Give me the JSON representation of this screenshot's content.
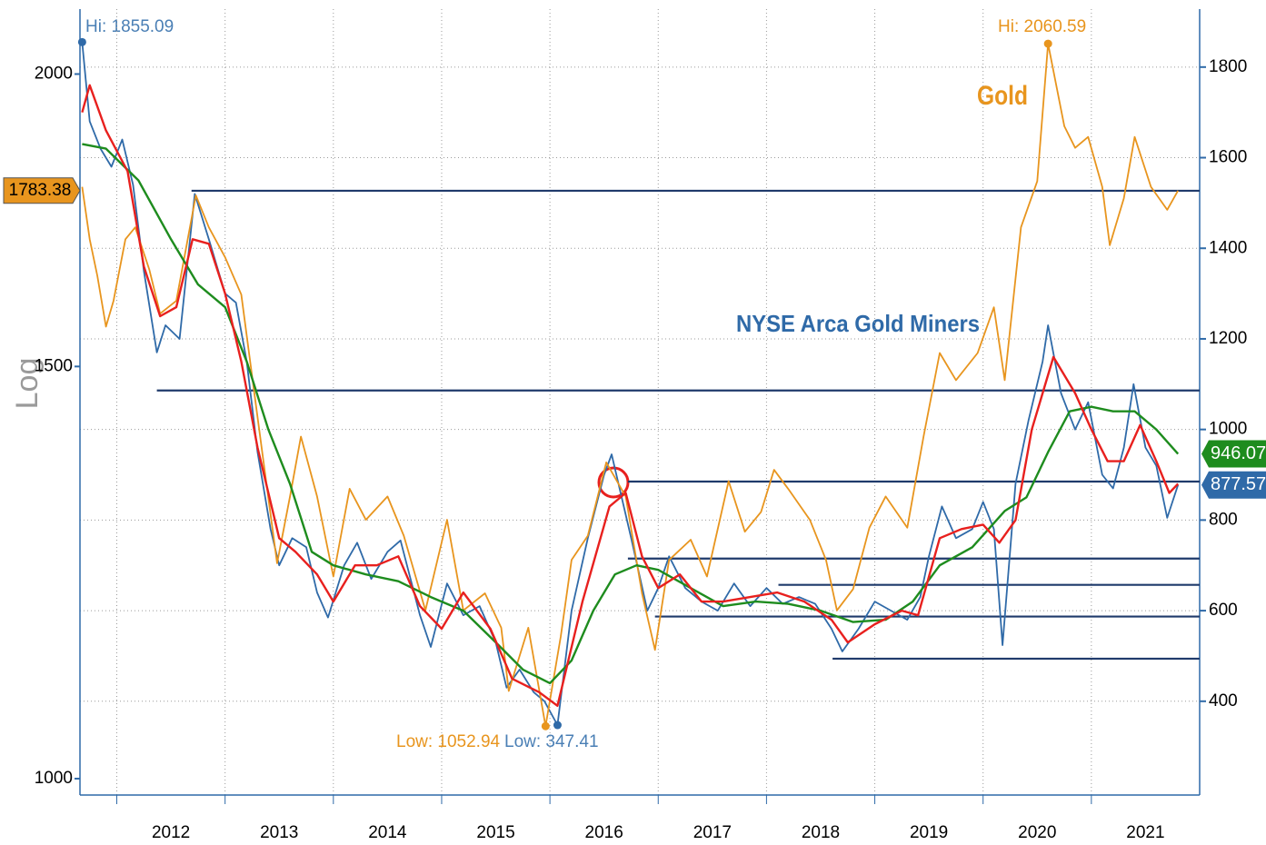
{
  "chart_data": {
    "type": "line",
    "y_axis_label": "Log",
    "log_y": true,
    "grid": true,
    "xlim": [
      2011.66,
      2022.0
    ],
    "xticks": [
      2012,
      2013,
      2014,
      2015,
      2016,
      2017,
      2018,
      2019,
      2020,
      2021
    ],
    "ylim": [
      984,
      2132
    ],
    "yticks": [
      1000,
      1500,
      2000
    ],
    "y2lim": [
      193,
      1928
    ],
    "y2ticks": [
      400,
      600,
      800,
      1000,
      1200,
      1400,
      1600,
      1800
    ],
    "series": [
      {
        "name": "Gold",
        "color": "#e8951e",
        "axis": "y",
        "x": [
          2011.68,
          2011.75,
          2011.82,
          2011.9,
          2011.97,
          2012.08,
          2012.17,
          2012.3,
          2012.4,
          2012.55,
          2012.73,
          2012.85,
          2013.0,
          2013.15,
          2013.28,
          2013.48,
          2013.6,
          2013.7,
          2013.85,
          2014.0,
          2014.15,
          2014.3,
          2014.5,
          2014.65,
          2014.85,
          2015.05,
          2015.2,
          2015.4,
          2015.55,
          2015.62,
          2015.8,
          2015.96,
          2016.1,
          2016.2,
          2016.35,
          2016.52,
          2016.7,
          2016.85,
          2016.97,
          2017.1,
          2017.3,
          2017.45,
          2017.65,
          2017.8,
          2017.95,
          2018.07,
          2018.2,
          2018.4,
          2018.55,
          2018.65,
          2018.8,
          2018.95,
          2019.1,
          2019.3,
          2019.45,
          2019.6,
          2019.75,
          2019.95,
          2020.1,
          2020.2,
          2020.35,
          2020.5,
          2020.6,
          2020.75,
          2020.85,
          2020.97,
          2021.1,
          2021.17,
          2021.3,
          2021.4,
          2021.55,
          2021.7,
          2021.8
        ],
        "values": [
          1790,
          1700,
          1640,
          1560,
          1600,
          1700,
          1720,
          1650,
          1580,
          1600,
          1775,
          1720,
          1670,
          1610,
          1450,
          1236,
          1320,
          1400,
          1320,
          1220,
          1330,
          1290,
          1320,
          1270,
          1180,
          1290,
          1180,
          1200,
          1160,
          1090,
          1160,
          1052.94,
          1150,
          1240,
          1270,
          1365,
          1320,
          1200,
          1135,
          1240,
          1265,
          1220,
          1340,
          1275,
          1300,
          1355,
          1330,
          1290,
          1240,
          1180,
          1205,
          1280,
          1320,
          1280,
          1400,
          1520,
          1480,
          1520,
          1590,
          1480,
          1720,
          1800,
          2060.59,
          1900,
          1860,
          1880,
          1790,
          1690,
          1770,
          1880,
          1790,
          1750,
          1783.38
        ]
      },
      {
        "name": "NYSE Arca Gold Miners",
        "color": "#2f6aa8",
        "axis": "y2",
        "x": [
          2011.68,
          2011.75,
          2011.85,
          2011.95,
          2012.05,
          2012.15,
          2012.25,
          2012.37,
          2012.45,
          2012.58,
          2012.72,
          2012.85,
          2013.0,
          2013.1,
          2013.2,
          2013.3,
          2013.42,
          2013.5,
          2013.62,
          2013.75,
          2013.85,
          2013.95,
          2014.1,
          2014.22,
          2014.35,
          2014.5,
          2014.62,
          2014.8,
          2014.9,
          2015.05,
          2015.2,
          2015.35,
          2015.5,
          2015.6,
          2015.72,
          2015.85,
          2015.95,
          2016.07,
          2016.2,
          2016.35,
          2016.5,
          2016.57,
          2016.75,
          2016.9,
          2017.0,
          2017.1,
          2017.25,
          2017.4,
          2017.55,
          2017.7,
          2017.85,
          2018.0,
          2018.15,
          2018.3,
          2018.45,
          2018.6,
          2018.7,
          2018.85,
          2019.0,
          2019.15,
          2019.3,
          2019.42,
          2019.5,
          2019.62,
          2019.75,
          2019.9,
          2020.0,
          2020.1,
          2020.18,
          2020.3,
          2020.42,
          2020.55,
          2020.6,
          2020.72,
          2020.85,
          2020.97,
          2021.1,
          2021.2,
          2021.3,
          2021.39,
          2021.5,
          2021.6,
          2021.7,
          2021.8
        ],
        "values": [
          1855.09,
          1680,
          1620,
          1580,
          1640,
          1540,
          1350,
          1170,
          1230,
          1200,
          1520,
          1420,
          1300,
          1280,
          1150,
          950,
          780,
          700,
          760,
          740,
          640,
          585,
          700,
          750,
          670,
          730,
          755,
          590,
          520,
          660,
          590,
          610,
          530,
          430,
          470,
          420,
          400,
          347.41,
          600,
          760,
          900,
          945,
          760,
          600,
          650,
          720,
          650,
          620,
          600,
          660,
          610,
          650,
          615,
          630,
          615,
          560,
          510,
          560,
          620,
          600,
          580,
          630,
          720,
          830,
          760,
          780,
          840,
          780,
          524,
          880,
          1020,
          1150,
          1230,
          1080,
          1000,
          1060,
          900,
          870,
          960,
          1100,
          960,
          920,
          805,
          877.57
        ]
      },
      {
        "color": "#e8201e",
        "axis": "y2",
        "x": [
          2011.68,
          2011.75,
          2011.9,
          2012.1,
          2012.25,
          2012.4,
          2012.55,
          2012.7,
          2012.85,
          2013.0,
          2013.15,
          2013.3,
          2013.5,
          2013.65,
          2013.85,
          2014.0,
          2014.2,
          2014.4,
          2014.6,
          2014.8,
          2015.0,
          2015.2,
          2015.45,
          2015.65,
          2015.9,
          2016.07,
          2016.3,
          2016.55,
          2016.7,
          2016.85,
          2017.0,
          2017.2,
          2017.4,
          2017.6,
          2017.85,
          2018.1,
          2018.35,
          2018.6,
          2018.75,
          2019.0,
          2019.25,
          2019.4,
          2019.6,
          2019.8,
          2020.0,
          2020.15,
          2020.3,
          2020.45,
          2020.65,
          2020.85,
          2021.0,
          2021.15,
          2021.3,
          2021.45,
          2021.6,
          2021.72,
          2021.8
        ],
        "values": [
          1700,
          1760,
          1660,
          1570,
          1360,
          1250,
          1270,
          1420,
          1410,
          1300,
          1150,
          960,
          760,
          730,
          680,
          620,
          700,
          700,
          720,
          610,
          560,
          640,
          560,
          450,
          420,
          390,
          620,
          830,
          860,
          720,
          650,
          680,
          620,
          620,
          630,
          640,
          620,
          580,
          530,
          570,
          600,
          590,
          760,
          780,
          790,
          750,
          800,
          1000,
          1160,
          1080,
          1000,
          930,
          930,
          1010,
          930,
          860,
          880
        ]
      },
      {
        "color": "#1e8c1e",
        "axis": "y2",
        "x": [
          2011.68,
          2011.9,
          2012.2,
          2012.5,
          2012.75,
          2013.0,
          2013.2,
          2013.4,
          2013.6,
          2013.8,
          2014.0,
          2014.3,
          2014.6,
          2014.9,
          2015.2,
          2015.5,
          2015.75,
          2016.0,
          2016.2,
          2016.4,
          2016.6,
          2016.8,
          2017.0,
          2017.3,
          2017.6,
          2017.9,
          2018.2,
          2018.5,
          2018.8,
          2019.1,
          2019.35,
          2019.6,
          2019.9,
          2020.2,
          2020.4,
          2020.6,
          2020.8,
          2021.0,
          2021.2,
          2021.4,
          2021.6,
          2021.8
        ],
        "values": [
          1630,
          1620,
          1550,
          1420,
          1320,
          1270,
          1150,
          1000,
          880,
          730,
          700,
          680,
          665,
          630,
          600,
          530,
          470,
          440,
          490,
          600,
          680,
          700,
          690,
          650,
          610,
          620,
          615,
          600,
          575,
          580,
          620,
          700,
          740,
          820,
          850,
          950,
          1040,
          1050,
          1040,
          1040,
          1000,
          946.07
        ]
      }
    ],
    "levels": [
      {
        "value": 1527,
        "start": 2012.69
      },
      {
        "value": 1086,
        "start": 2012.37
      },
      {
        "value": 885,
        "start": 2016.72
      },
      {
        "value": 715,
        "start": 2016.72
      },
      {
        "value": 657,
        "start": 2018.11
      },
      {
        "value": 587,
        "start": 2016.97
      },
      {
        "value": 494,
        "start": 2018.61
      }
    ],
    "annotations": [
      "Hi: 1855.09",
      "Hi: 2060.59",
      "Low: 1052.94",
      "Low: 347.41"
    ]
  }
}
